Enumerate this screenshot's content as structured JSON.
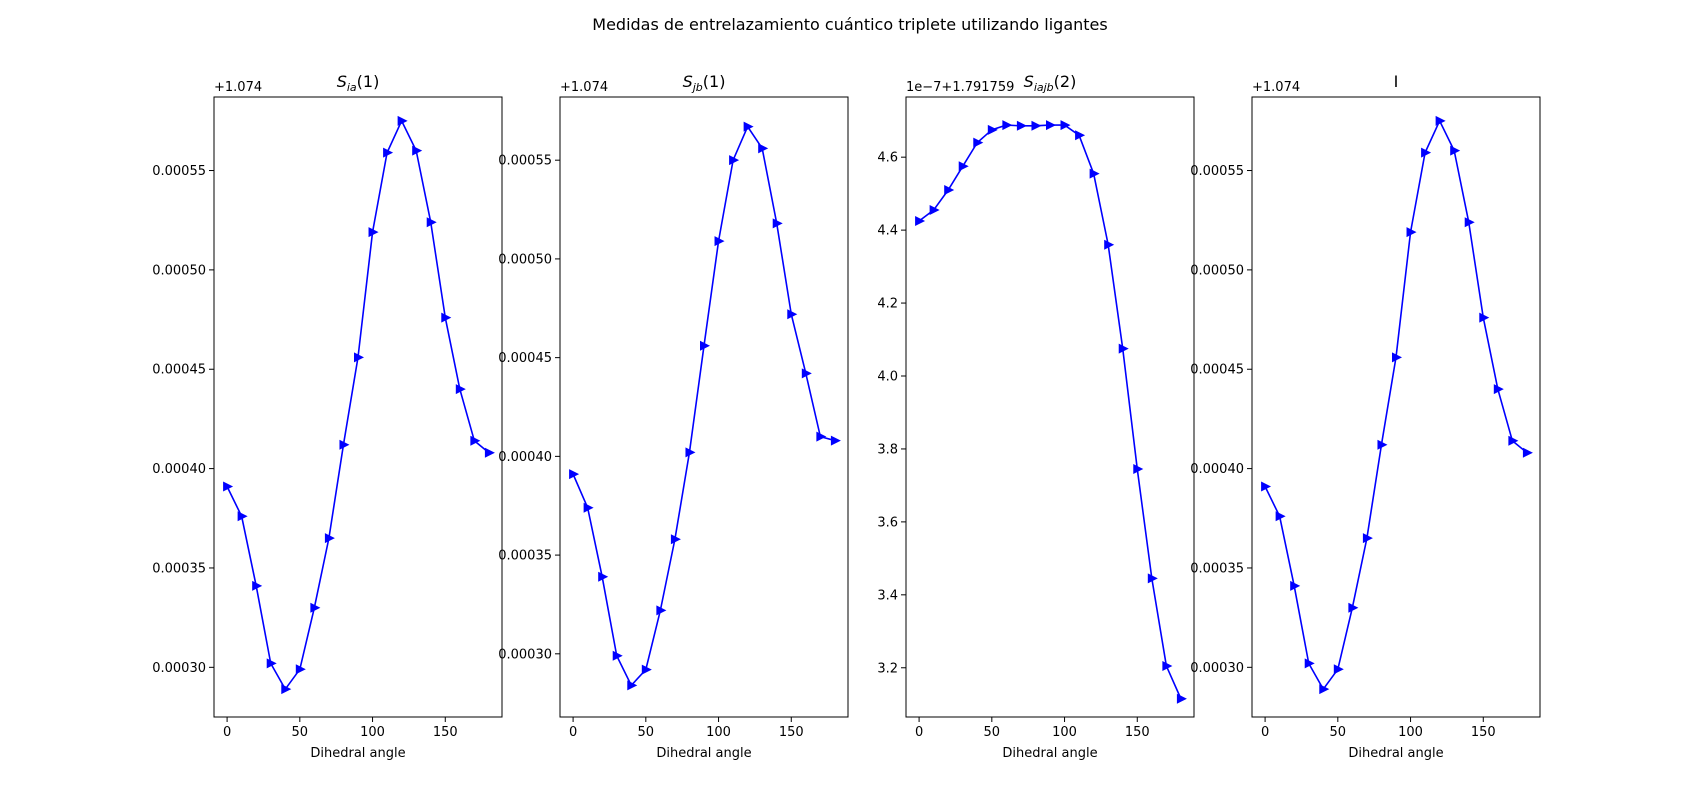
{
  "figure": {
    "suptitle": "Medidas de entrelazamiento cuántico triplete utilizando ligantes"
  },
  "chart_data": [
    {
      "type": "line",
      "title_main": "S",
      "title_sub": "ia",
      "title_rest": "(1)",
      "offset_text": "+1.074",
      "xlabel": "Dihedral angle",
      "ylabel": "",
      "grid": false,
      "marker": "triangle-right",
      "color": "#0000ff",
      "xlim": [
        -9,
        189
      ],
      "ylim": [
        0.000275,
        0.000587
      ],
      "xticks": [
        0,
        50,
        100,
        150
      ],
      "yticks": [
        0.0003,
        0.00035,
        0.0004,
        0.00045,
        0.0005,
        0.00055
      ],
      "ytick_labels": [
        "0.00030",
        "0.00035",
        "0.00040",
        "0.00045",
        "0.00050",
        "0.00055"
      ],
      "x": [
        0,
        10,
        20,
        30,
        40,
        50,
        60,
        70,
        80,
        90,
        100,
        110,
        120,
        130,
        140,
        150,
        160,
        170,
        180
      ],
      "y": [
        0.000391,
        0.000376,
        0.000341,
        0.000302,
        0.000289,
        0.000299,
        0.00033,
        0.000365,
        0.000412,
        0.000456,
        0.000519,
        0.000559,
        0.000575,
        0.00056,
        0.000524,
        0.000476,
        0.00044,
        0.000414,
        0.000408
      ]
    },
    {
      "type": "line",
      "title_main": "S",
      "title_sub": "jb",
      "title_rest": "(1)",
      "offset_text": "+1.074",
      "xlabel": "Dihedral angle",
      "ylabel": "",
      "grid": false,
      "marker": "triangle-right",
      "color": "#0000ff",
      "xlim": [
        -9,
        189
      ],
      "ylim": [
        0.000268,
        0.000582
      ],
      "xticks": [
        0,
        50,
        100,
        150
      ],
      "yticks": [
        0.0003,
        0.00035,
        0.0004,
        0.00045,
        0.0005,
        0.00055
      ],
      "ytick_labels": [
        "0.00030",
        "0.00035",
        "0.00040",
        "0.00045",
        "0.00050",
        "0.00055"
      ],
      "x": [
        0,
        10,
        20,
        30,
        40,
        50,
        60,
        70,
        80,
        90,
        100,
        110,
        120,
        130,
        140,
        150,
        160,
        170,
        180
      ],
      "y": [
        0.000391,
        0.000374,
        0.000339,
        0.000299,
        0.000284,
        0.000292,
        0.000322,
        0.000358,
        0.000402,
        0.000456,
        0.000509,
        0.00055,
        0.000567,
        0.000556,
        0.000518,
        0.000472,
        0.000442,
        0.00041,
        0.000408
      ]
    },
    {
      "type": "line",
      "title_main": "S",
      "title_sub": "iajb",
      "title_rest": "(2)",
      "offset_text": "1e−7+1.791759",
      "xlabel": "Dihedral angle",
      "ylabel": "",
      "grid": false,
      "marker": "triangle-right",
      "color": "#0000ff",
      "xlim": [
        -9,
        189
      ],
      "ylim": [
        3.065,
        4.765
      ],
      "xticks": [
        0,
        50,
        100,
        150
      ],
      "yticks": [
        3.2,
        3.4,
        3.6,
        3.8,
        4.0,
        4.2,
        4.4,
        4.6
      ],
      "ytick_labels": [
        "3.2",
        "3.4",
        "3.6",
        "3.8",
        "4.0",
        "4.2",
        "4.4",
        "4.6"
      ],
      "x": [
        0,
        10,
        20,
        30,
        40,
        50,
        60,
        70,
        80,
        90,
        100,
        110,
        120,
        130,
        140,
        150,
        160,
        170,
        180
      ],
      "y": [
        4.425,
        4.455,
        4.51,
        4.575,
        4.64,
        4.675,
        4.688,
        4.686,
        4.686,
        4.688,
        4.688,
        4.66,
        4.555,
        4.36,
        4.075,
        3.745,
        3.445,
        3.205,
        3.115
      ]
    },
    {
      "type": "line",
      "title_main": "I",
      "title_sub": "",
      "title_rest": "",
      "offset_text": "+1.074",
      "xlabel": "Dihedral angle",
      "ylabel": "",
      "grid": false,
      "marker": "triangle-right",
      "color": "#0000ff",
      "xlim": [
        -9,
        189
      ],
      "ylim": [
        0.000275,
        0.000587
      ],
      "xticks": [
        0,
        50,
        100,
        150
      ],
      "yticks": [
        0.0003,
        0.00035,
        0.0004,
        0.00045,
        0.0005,
        0.00055
      ],
      "ytick_labels": [
        "0.00030",
        "0.00035",
        "0.00040",
        "0.00045",
        "0.00050",
        "0.00055"
      ],
      "x": [
        0,
        10,
        20,
        30,
        40,
        50,
        60,
        70,
        80,
        90,
        100,
        110,
        120,
        130,
        140,
        150,
        160,
        170,
        180
      ],
      "y": [
        0.000391,
        0.000376,
        0.000341,
        0.000302,
        0.000289,
        0.000299,
        0.00033,
        0.000365,
        0.000412,
        0.000456,
        0.000519,
        0.000559,
        0.000575,
        0.00056,
        0.000524,
        0.000476,
        0.00044,
        0.000414,
        0.000408
      ]
    }
  ]
}
